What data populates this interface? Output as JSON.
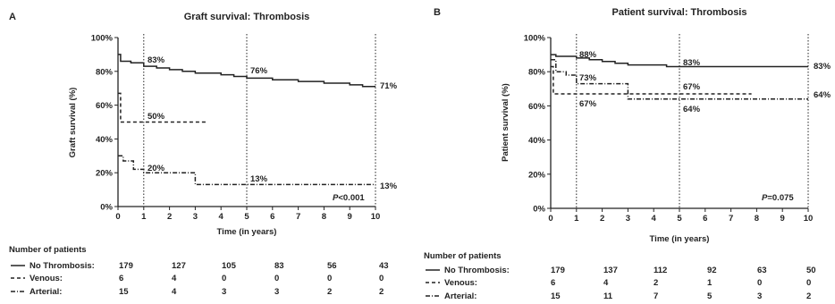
{
  "chart_data": [
    {
      "type": "line",
      "panel_label": "A",
      "title": "Graft survival: Thrombosis",
      "xlabel": "Time (in years)",
      "ylabel": "Graft survival (%)",
      "xlim": [
        0,
        10
      ],
      "ylim": [
        0,
        100
      ],
      "x_ticks": [
        0,
        1,
        2,
        3,
        4,
        5,
        6,
        7,
        8,
        9,
        10
      ],
      "y_ticks": [
        "0%",
        "20%",
        "40%",
        "60%",
        "80%",
        "100%"
      ],
      "reference_lines_x": [
        1,
        5,
        10
      ],
      "series": [
        {
          "name": "No Thrombosis",
          "style": "solid",
          "x": [
            0,
            0.1,
            0.5,
            1,
            1.5,
            2,
            2.5,
            3,
            4,
            4.5,
            5,
            6,
            7,
            8,
            9,
            9.5,
            10
          ],
          "y": [
            90,
            86,
            85,
            83,
            82,
            81,
            80,
            79,
            78,
            77,
            76,
            75,
            74,
            73,
            72,
            71,
            71
          ]
        },
        {
          "name": "Venous",
          "style": "dashed",
          "x": [
            0,
            0.1,
            3.5
          ],
          "y": [
            67,
            50,
            50
          ]
        },
        {
          "name": "Arterial",
          "style": "dashdot",
          "x": [
            0,
            0.2,
            0.6,
            1,
            3,
            10
          ],
          "y": [
            30,
            27,
            22,
            20,
            13,
            13
          ]
        }
      ],
      "annotations": [
        "83%",
        "76%",
        "71%",
        "50%",
        "20%",
        "13%",
        "13%"
      ],
      "p_value_label": "P",
      "p_value_text": "<0.001",
      "risk_table": {
        "header": "Number of patients",
        "rows": [
          {
            "label": "No  Thrombosis:",
            "values": [
              179,
              127,
              105,
              83,
              56,
              43
            ]
          },
          {
            "label": "Venous:",
            "values": [
              6,
              4,
              0,
              0,
              0,
              0
            ]
          },
          {
            "label": "Arterial:",
            "values": [
              15,
              4,
              3,
              3,
              2,
              2
            ]
          }
        ]
      }
    },
    {
      "type": "line",
      "panel_label": "B",
      "title": "Patient survival: Thrombosis",
      "xlabel": "Time (in years)",
      "ylabel": "Patient survival (%)",
      "xlim": [
        0,
        10
      ],
      "ylim": [
        0,
        100
      ],
      "x_ticks": [
        0,
        1,
        2,
        3,
        4,
        5,
        6,
        7,
        8,
        9,
        10
      ],
      "y_ticks": [
        "0%",
        "20%",
        "40%",
        "60%",
        "80%",
        "100%"
      ],
      "reference_lines_x": [
        1,
        5,
        10
      ],
      "series": [
        {
          "name": "No Thrombosis",
          "style": "solid",
          "x": [
            0,
            0.2,
            0.5,
            1,
            1.5,
            2,
            2.5,
            3,
            4,
            4.5,
            5,
            10
          ],
          "y": [
            90,
            89,
            89,
            88,
            87,
            86,
            85,
            84,
            84,
            83,
            83,
            83
          ]
        },
        {
          "name": "Venous",
          "style": "dashed",
          "x": [
            0,
            0.1,
            7.8
          ],
          "y": [
            83,
            67,
            67
          ]
        },
        {
          "name": "Arterial",
          "style": "dashdot",
          "x": [
            0,
            0.2,
            0.6,
            1,
            3,
            10
          ],
          "y": [
            87,
            80,
            78,
            73,
            64,
            64
          ]
        }
      ],
      "annotations": [
        "88%",
        "83%",
        "83%",
        "73%",
        "67%",
        "67%",
        "64%",
        "64%"
      ],
      "p_value_label": "P",
      "p_value_text": "=0.075",
      "risk_table": {
        "header": "Number of patients",
        "rows": [
          {
            "label": "No  Thrombosis:",
            "values": [
              179,
              137,
              112,
              92,
              63,
              50
            ]
          },
          {
            "label": "Venous:",
            "values": [
              6,
              4,
              2,
              1,
              0,
              0
            ]
          },
          {
            "label": "Arterial:",
            "values": [
              15,
              11,
              7,
              5,
              3,
              2
            ]
          }
        ]
      }
    }
  ]
}
